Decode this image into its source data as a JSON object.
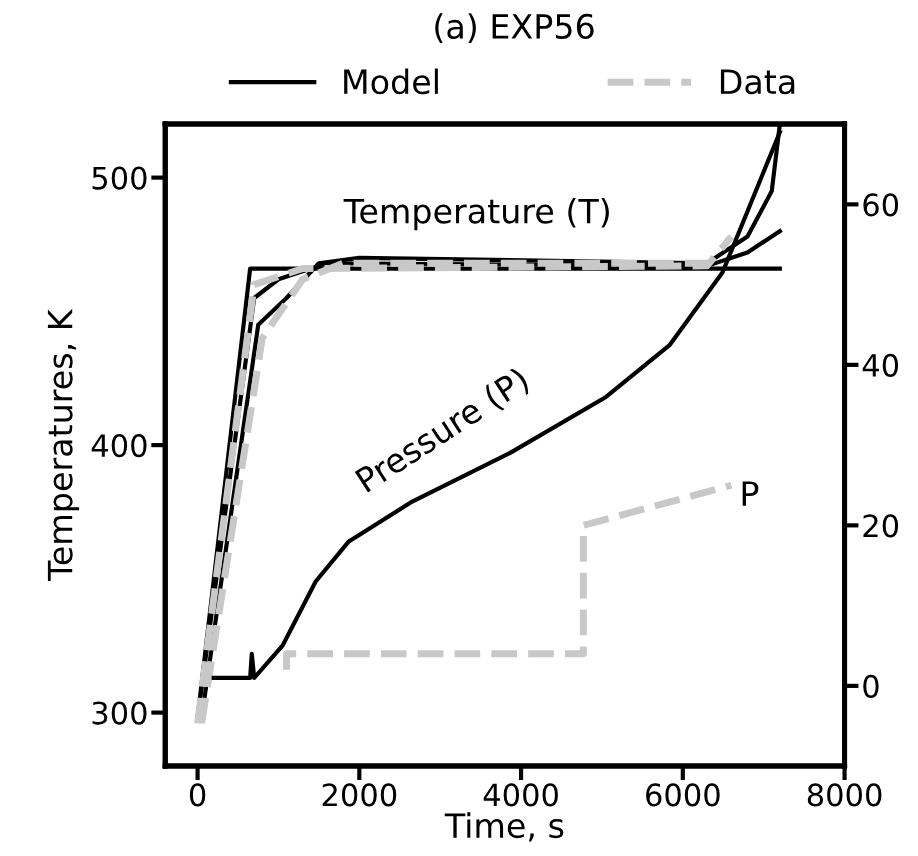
{
  "chart_data": {
    "type": "line",
    "title": "(a) EXP56",
    "xlabel": "Time, s",
    "ylabel": "Temperatures, K",
    "legend": "top",
    "xlim": [
      -400,
      8000
    ],
    "xticks": [
      0,
      2000,
      4000,
      6000,
      8000
    ],
    "ylim": [
      280,
      520
    ],
    "yticks": [
      300,
      400,
      500
    ],
    "y2lim": [
      -10,
      70
    ],
    "y2ticks": [
      0,
      20,
      40,
      60
    ],
    "grid": false,
    "series": [
      {
        "name": "Model",
        "color": "#000000",
        "line_style": "solid",
        "x": [
          0,
          650,
          6400,
          7200
        ],
        "values": [
          298,
          466,
          466,
          466
        ]
      },
      {
        "color": "#000000",
        "line_style": "solid",
        "x": [
          0,
          700,
          1000,
          1600,
          6300,
          6800,
          7200
        ],
        "values": [
          298,
          455,
          462,
          468,
          467,
          472,
          480
        ]
      },
      {
        "color": "#000000",
        "line_style": "solid",
        "x": [
          50,
          750,
          1100,
          1500,
          2000,
          6300,
          6800,
          7100,
          7200
        ],
        "values": [
          298,
          445,
          455,
          468,
          470,
          468,
          478,
          495,
          520
        ]
      },
      {
        "name": "Data",
        "color": "#c8c8c8",
        "line_style": "dashed",
        "x": [
          0,
          700,
          1300,
          6300,
          6600
        ],
        "values": [
          296,
          460,
          466,
          467,
          478
        ]
      },
      {
        "color": "#c8c8c8",
        "line_style": "dashed",
        "x": [
          50,
          800,
          1300,
          1800,
          6300
        ],
        "values": [
          296,
          440,
          462,
          468,
          468
        ]
      },
      {
        "color": "#000000",
        "line_style": "solid",
        "axis": "y2",
        "x": [
          200,
          650,
          670,
          700,
          1050,
          1460,
          1870,
          2660,
          3860,
          5050,
          5840,
          6490,
          7200
        ],
        "values": [
          1,
          1,
          4,
          1,
          5,
          13,
          18,
          23,
          29,
          36,
          42.5,
          51.5,
          69
        ]
      },
      {
        "color": "#c8c8c8",
        "line_style": "dashed",
        "axis": "y2",
        "x": [
          1100,
          1100,
          4770,
          4770,
          6600
        ],
        "values": [
          2,
          4,
          4,
          20,
          25
        ]
      }
    ],
    "annotations": [
      "Temperature (T)",
      "Pressure (P)",
      "P"
    ]
  }
}
